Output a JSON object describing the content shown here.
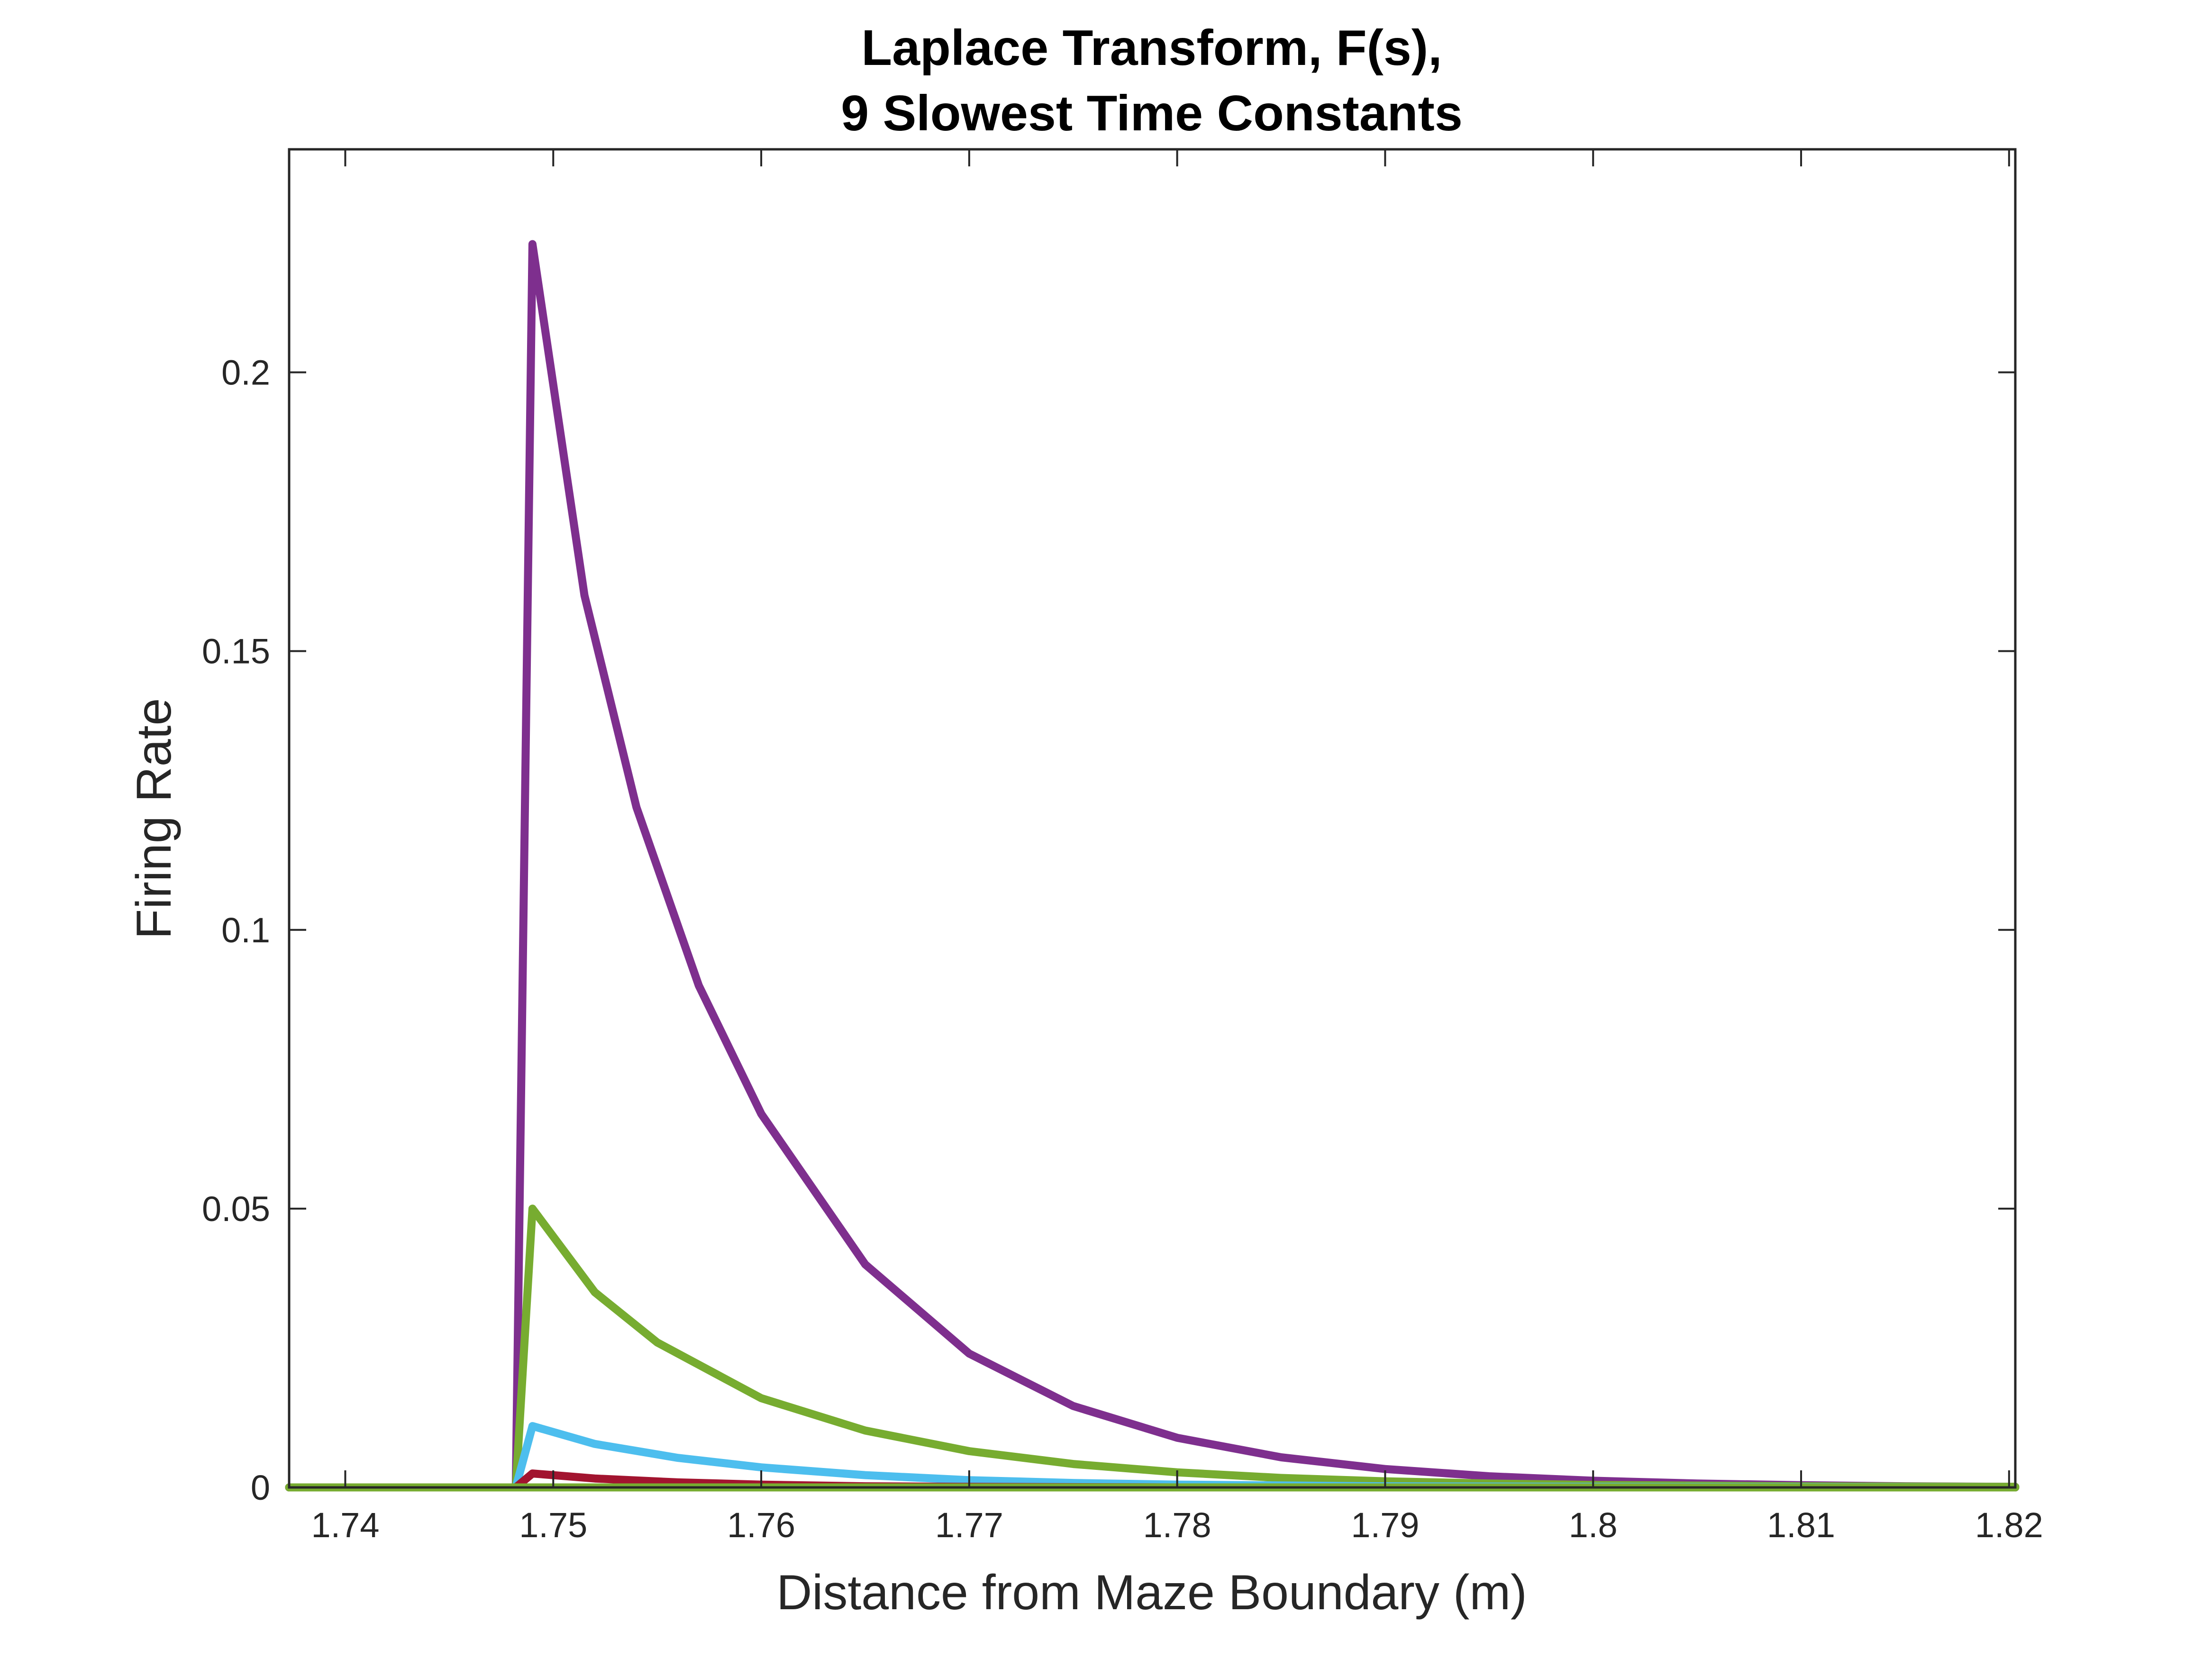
{
  "chart_data": {
    "type": "line",
    "title": [
      "Laplace Transform, F(s),",
      "9 Slowest Time Constants"
    ],
    "xlabel": "Distance from Maze Boundary (m)",
    "ylabel": "Firing Rate",
    "xlim": [
      1.7373,
      1.8203
    ],
    "ylim": [
      0,
      0.24
    ],
    "xticks": [
      1.74,
      1.75,
      1.76,
      1.77,
      1.78,
      1.79,
      1.8,
      1.81,
      1.82
    ],
    "xtick_labels": [
      "1.74",
      "1.75",
      "1.76",
      "1.77",
      "1.78",
      "1.79",
      "1.8",
      "1.81",
      "1.82"
    ],
    "yticks": [
      0,
      0.05,
      0.1,
      0.15,
      0.2
    ],
    "ytick_labels": [
      "0",
      "0.05",
      "0.1",
      "0.15",
      "0.2"
    ],
    "grid": false,
    "legend": "none",
    "series": [
      {
        "color": "#7E2F8E",
        "x": [
          1.7373,
          1.7482,
          1.749,
          1.7515,
          1.754,
          1.757,
          1.76,
          1.765,
          1.77,
          1.775,
          1.78,
          1.785,
          1.79,
          1.795,
          1.8,
          1.805,
          1.81,
          1.815,
          1.8203
        ],
        "y": [
          0,
          0,
          0.223,
          0.16,
          0.122,
          0.09,
          0.067,
          0.04,
          0.024,
          0.0146,
          0.0089,
          0.0054,
          0.0033,
          0.002,
          0.0012,
          0.0007,
          0.0004,
          0.0002,
          0.0001
        ]
      },
      {
        "color": "#77AC30",
        "x": [
          1.7373,
          1.7482,
          1.749,
          1.752,
          1.755,
          1.76,
          1.765,
          1.77,
          1.775,
          1.78,
          1.785,
          1.79,
          1.795,
          1.8,
          1.81,
          1.8203
        ],
        "y": [
          0,
          0,
          0.05,
          0.035,
          0.026,
          0.016,
          0.0102,
          0.0065,
          0.0042,
          0.0027,
          0.0017,
          0.0011,
          0.0007,
          0.00045,
          0.0002,
          0.0001
        ]
      },
      {
        "color": "#4DBEEE",
        "x": [
          1.7373,
          1.7482,
          1.749,
          1.752,
          1.756,
          1.76,
          1.765,
          1.77,
          1.775,
          1.78,
          1.79,
          1.8,
          1.8203
        ],
        "y": [
          0,
          0,
          0.011,
          0.0078,
          0.0053,
          0.0036,
          0.0022,
          0.0013,
          0.0008,
          0.0005,
          0.0002,
          0.0001,
          0
        ]
      },
      {
        "color": "#A2142F",
        "x": [
          1.7373,
          1.7482,
          1.749,
          1.752,
          1.756,
          1.76,
          1.765,
          1.77,
          1.78,
          1.8203
        ],
        "y": [
          0,
          0,
          0.0025,
          0.0016,
          0.0009,
          0.0005,
          0.0002,
          0.0001,
          0,
          0
        ]
      },
      {
        "color": "#77AC30",
        "x": [
          1.7373,
          1.8203
        ],
        "y": [
          0,
          0
        ]
      }
    ]
  }
}
